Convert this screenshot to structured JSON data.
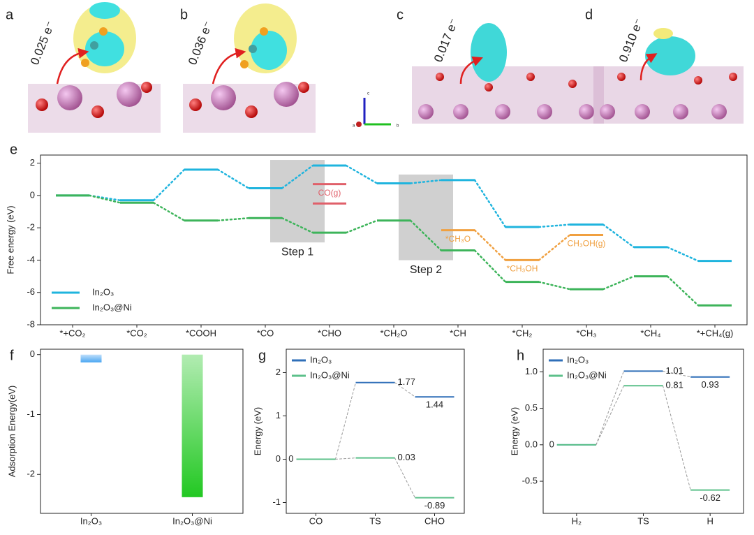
{
  "images": [
    {
      "panel": "a",
      "charge": "0.025 e⁻"
    },
    {
      "panel": "b",
      "charge": "0.036 e⁻"
    },
    {
      "panel": "c",
      "charge": "0.017 e⁻"
    },
    {
      "panel": "d",
      "charge": "0.910 e⁻"
    }
  ],
  "axis_triad": [
    "c",
    "a",
    "b"
  ],
  "chart_data": [
    {
      "type": "energy",
      "panel": "e",
      "ylabel": "Free energy (eV)",
      "categories": [
        "*+CO₂",
        "*CO₂",
        "*COOH",
        "*CO",
        "*CHO",
        "*CH₂O",
        "*CH",
        "*CH₂",
        "*CH₃",
        "*CH₄",
        "*+CH₄(g)"
      ],
      "series": [
        {
          "name": "In₂O₃",
          "color": "#1fb4de",
          "values": [
            0,
            -0.3,
            1.6,
            0.45,
            1.85,
            0.75,
            0.95,
            -1.95,
            -1.8,
            -3.2,
            -4.05
          ]
        },
        {
          "name": "In₂O₃@Ni",
          "color": "#3db45a",
          "values": [
            0,
            -0.45,
            -1.55,
            -1.4,
            -2.3,
            -1.55,
            -3.4,
            -5.35,
            -5.8,
            -5.0,
            -6.8
          ]
        }
      ],
      "annotations": [
        {
          "category": "*CHO",
          "value": 0.7,
          "color": "#e0606a",
          "text": "CO(g)"
        },
        {
          "category": "*CHO",
          "value": -0.5,
          "color": "#e0606a"
        },
        {
          "category": "*CH",
          "value": -2.15,
          "color": "#f0a040",
          "text": "*CH₃O"
        },
        {
          "category": "*CH₂",
          "value": -4.0,
          "color": "#f0a040",
          "text": "*CH₃OH"
        },
        {
          "category": "*CH₃",
          "value": -2.45,
          "color": "#f0a040",
          "text": "CH₃OH(g)"
        }
      ],
      "steps": [
        {
          "text": "Step 1",
          "category": "*CHO"
        },
        {
          "text": "Step 2",
          "category": "*CH"
        }
      ],
      "ylim": [
        -8,
        2.5
      ],
      "yticks": [
        -8,
        -6,
        -4,
        -2,
        0,
        2
      ],
      "legend": "lower left"
    },
    {
      "type": "bar",
      "panel": "f",
      "ylabel": "Adsorption Energy(eV)",
      "categories": [
        "In₂O₃",
        "In₂O₃@Ni"
      ],
      "values": [
        -0.13,
        -2.38
      ],
      "colors": [
        "#4aa6f2",
        "#22c822"
      ],
      "ylim": [
        -2.65,
        0.09
      ],
      "yticks": [
        -2,
        -1,
        0
      ]
    },
    {
      "type": "energy",
      "panel": "g",
      "ylabel": "Energy (eV)",
      "categories": [
        "CO",
        "TS",
        "CHO"
      ],
      "series": [
        {
          "name": "In₂O₃",
          "color": "#2f6fb8",
          "values": [
            0,
            1.77,
            1.44
          ],
          "value_labels": [
            null,
            "1.77",
            "1.44"
          ]
        },
        {
          "name": "In₂O₃@Ni",
          "color": "#5cc08a",
          "values": [
            0,
            0.03,
            -0.89
          ],
          "value_labels": [
            "0",
            "0.03",
            "-0.89"
          ]
        }
      ],
      "ylim": [
        -1.25,
        2.54
      ],
      "yticks": [
        -1,
        0,
        1,
        2
      ],
      "legend": "upper left"
    },
    {
      "type": "energy",
      "panel": "h",
      "ylabel": "Energy (eV)",
      "categories": [
        "H₂",
        "TS",
        "H"
      ],
      "series": [
        {
          "name": "In₂O₃",
          "color": "#2f6fb8",
          "values": [
            0,
            1.01,
            0.93
          ],
          "value_labels": [
            null,
            "1.01",
            "0.93"
          ]
        },
        {
          "name": "In₂O₃@Ni",
          "color": "#5cc08a",
          "values": [
            0,
            0.81,
            -0.62
          ],
          "value_labels": [
            "0",
            "0.81",
            "-0.62"
          ]
        }
      ],
      "ylim": [
        -0.94,
        1.31
      ],
      "yticks": [
        -0.5,
        {
          "value": 0,
          "label": "0.0"
        },
        0.5,
        {
          "value": 1,
          "label": "1.0"
        }
      ],
      "legend": "upper left"
    }
  ]
}
